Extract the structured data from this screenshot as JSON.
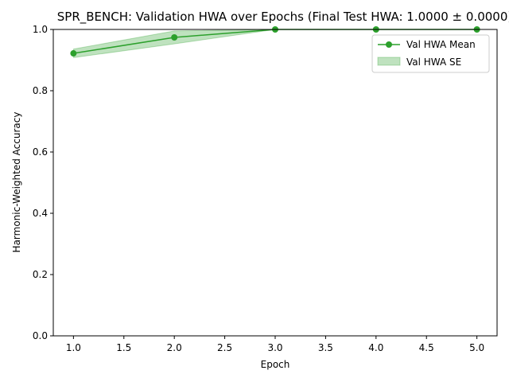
{
  "chart_data": {
    "type": "line",
    "title": "SPR_BENCH: Validation HWA over Epochs (Final Test HWA: 1.0000 ± 0.0000)",
    "xlabel": "Epoch",
    "ylabel": "Harmonic-Weighted Accuracy",
    "xlim": [
      0.8,
      5.2
    ],
    "ylim": [
      0.0,
      1.0
    ],
    "x_ticks": [
      1.0,
      1.5,
      2.0,
      2.5,
      3.0,
      3.5,
      4.0,
      4.5,
      5.0
    ],
    "y_ticks": [
      0.0,
      0.2,
      0.4,
      0.6,
      0.8,
      1.0
    ],
    "x": [
      1.0,
      2.0,
      3.0,
      4.0,
      5.0
    ],
    "series": [
      {
        "name": "Val HWA Mean",
        "values": [
          0.922,
          0.974,
          1.0,
          1.0,
          1.0
        ],
        "color": "#2ca02c"
      }
    ],
    "bands": [
      {
        "name": "Val HWA SE",
        "lower": [
          0.908,
          0.953,
          1.0,
          1.0,
          1.0
        ],
        "upper": [
          0.936,
          0.995,
          1.0,
          1.0,
          1.0
        ],
        "color": "#2ca02c"
      }
    ],
    "legend": {
      "position": "top-right"
    },
    "grid": false
  }
}
